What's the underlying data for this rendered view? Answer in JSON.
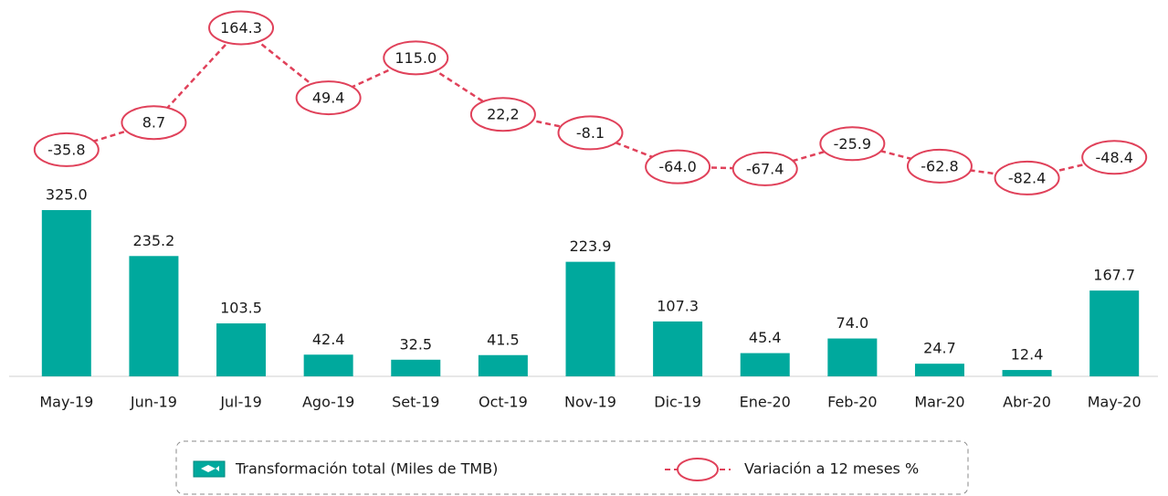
{
  "chart_data": {
    "type": "bar",
    "categories": [
      "May-19",
      "Jun-19",
      "Jul-19",
      "Ago-19",
      "Set-19",
      "Oct-19",
      "Nov-19",
      "Dic-19",
      "Ene-20",
      "Feb-20",
      "Mar-20",
      "Abr-20",
      "May-20"
    ],
    "ylim": [
      0,
      700
    ],
    "y2lim": [
      -90,
      180
    ],
    "series": [
      {
        "name": "Transformación  total (Miles de TMB)",
        "type": "bar",
        "color": "#00a99d",
        "values": [
          325.0,
          235.2,
          103.5,
          42.4,
          32.5,
          41.5,
          223.9,
          107.3,
          45.4,
          74.0,
          24.7,
          12.4,
          167.7
        ],
        "value_labels": [
          "325.0",
          "235.2",
          "103.5",
          "42.4",
          "32.5",
          "41.5",
          "223.9",
          "107.3",
          "45.4",
          "74.0",
          "24.7",
          "12.4",
          "167.7"
        ]
      },
      {
        "name": "Variación a 12 meses %",
        "type": "line",
        "axis": "y2",
        "color": "#e0415a",
        "values": [
          -35.8,
          8.7,
          164.3,
          49.4,
          115.0,
          22.2,
          -8.1,
          -64.0,
          -67.4,
          -25.9,
          -62.8,
          -82.4,
          -48.4
        ],
        "value_labels": [
          "-35.8",
          "8.7",
          "164.3",
          "49.4",
          "115.0",
          "22,2",
          "-8.1",
          "-64.0",
          "-67.4",
          "-25.9",
          "-62.8",
          "-82.4",
          "-48.4"
        ]
      }
    ]
  }
}
